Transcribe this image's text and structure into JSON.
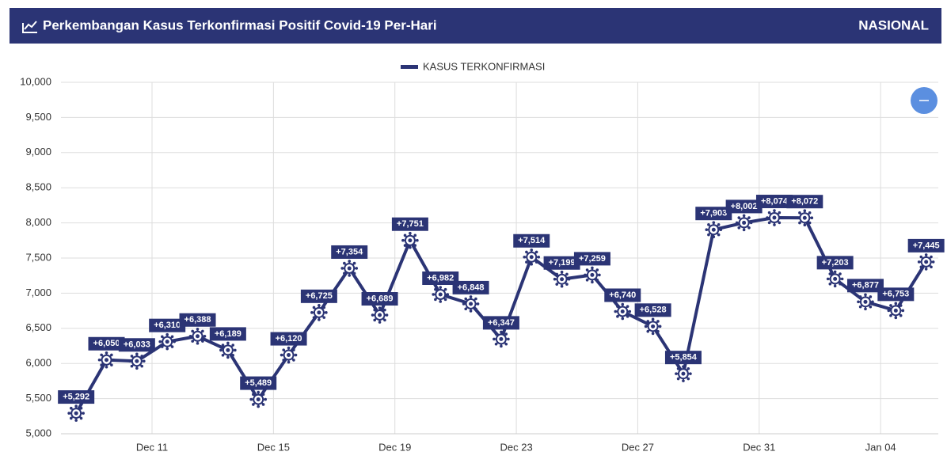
{
  "header": {
    "title": "Perkembangan Kasus Terkonfirmasi Positif Covid-19 Per-Hari",
    "region": "NASIONAL"
  },
  "chart_data": {
    "type": "line",
    "x": [
      0,
      1,
      2,
      3,
      4,
      5,
      6,
      7,
      8,
      9,
      10,
      11,
      12,
      13,
      14,
      15,
      16,
      17,
      18,
      19,
      20,
      21,
      22,
      23,
      24,
      25,
      26,
      27,
      28
    ],
    "xlim": [
      -0.5,
      28.4
    ],
    "xticks": [
      {
        "value": 2.5,
        "label": "Dec 11"
      },
      {
        "value": 6.5,
        "label": "Dec 15"
      },
      {
        "value": 10.5,
        "label": "Dec 19"
      },
      {
        "value": 14.5,
        "label": "Dec 23"
      },
      {
        "value": 18.5,
        "label": "Dec 27"
      },
      {
        "value": 22.5,
        "label": "Dec 31"
      },
      {
        "value": 26.5,
        "label": "Jan 04"
      }
    ],
    "ylim": [
      5000,
      10000
    ],
    "yticks": [
      {
        "value": 5000,
        "label": "5,000"
      },
      {
        "value": 5500,
        "label": "5,500"
      },
      {
        "value": 6000,
        "label": "6,000"
      },
      {
        "value": 6500,
        "label": "6,500"
      },
      {
        "value": 7000,
        "label": "7,000"
      },
      {
        "value": 7500,
        "label": "7,500"
      },
      {
        "value": 8000,
        "label": "8,000"
      },
      {
        "value": 8500,
        "label": "8,500"
      },
      {
        "value": 9000,
        "label": "9,000"
      },
      {
        "value": 9500,
        "label": "9,500"
      },
      {
        "value": 10000,
        "label": "10,000"
      }
    ],
    "grid": true,
    "series": [
      {
        "name": "KASUS TERKONFIRMASI",
        "color": "#2b3475",
        "values": [
          5292,
          6050,
          6033,
          6310,
          6388,
          6189,
          5489,
          6120,
          6725,
          7354,
          6689,
          7751,
          6982,
          6848,
          6347,
          7514,
          7199,
          7259,
          6740,
          6528,
          5854,
          7903,
          8002,
          8074,
          8072,
          7203,
          6877,
          6753,
          7445
        ],
        "value_labels": [
          "+5,292",
          "+6,050",
          "+6,033",
          "+6,310",
          "+6,388",
          "+6,189",
          "+5,489",
          "+6,120",
          "+6,725",
          "+7,354",
          "+6,689",
          "+7,751",
          "+6,982",
          "+6,848",
          "+6,347",
          "+7,514",
          "+7,199",
          "+7,259",
          "+6,740",
          "+6,528",
          "+5,854",
          "+7,903",
          "+8,002",
          "+8,074",
          "+8,072",
          "+7,203",
          "+6,877",
          "+6,753",
          "+7,445"
        ]
      }
    ]
  }
}
